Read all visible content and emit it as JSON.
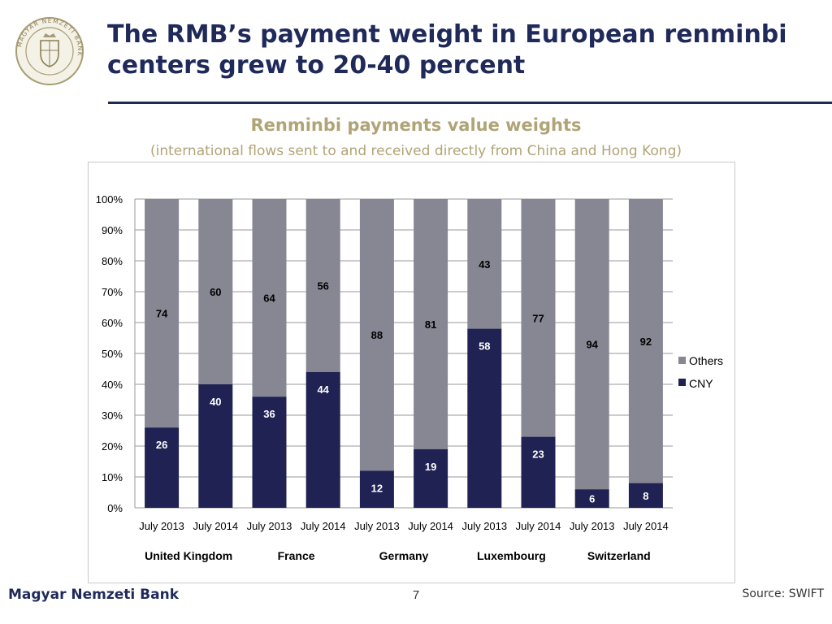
{
  "slide": {
    "title_line1": "The RMB’s payment weight in European renminbi",
    "title_line2": "centers grew to 20-40 percent",
    "bank_name": "Magyar Nemzeti Bank",
    "page_number": "7",
    "source": "Source: SWIFT",
    "logo_text": "MAGYAR NEMZETI BANK"
  },
  "colors": {
    "cny": "#1f2252",
    "others": "#878793",
    "title": "#1f2a5a",
    "chart_title": "#b0a476"
  },
  "chart_data": {
    "type": "bar",
    "stacked": true,
    "title": "Renminbi payments value weights",
    "subtitle": "(international flows sent to and received directly from China and Hong Kong)",
    "categories": [
      "July 2013",
      "July 2014",
      "July 2013",
      "July 2014",
      "July 2013",
      "July 2014",
      "July 2013",
      "July 2014",
      "July 2013",
      "July 2014"
    ],
    "groups": [
      "United Kingdom",
      "France",
      "Germany",
      "Luxembourg",
      "Switzerland"
    ],
    "series": [
      {
        "name": "CNY",
        "values": [
          26,
          40,
          36,
          44,
          12,
          19,
          58,
          23,
          6,
          8
        ]
      },
      {
        "name": "Others",
        "values": [
          74,
          60,
          64,
          56,
          88,
          81,
          43,
          77,
          94,
          92
        ]
      }
    ],
    "ylim": [
      0,
      100
    ],
    "yticks": [
      "0%",
      "10%",
      "20%",
      "30%",
      "40%",
      "50%",
      "60%",
      "70%",
      "80%",
      "90%",
      "100%"
    ],
    "grid": true,
    "legend": "right"
  }
}
